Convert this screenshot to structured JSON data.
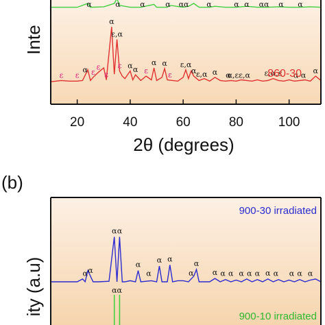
{
  "panel_b_label": "(b)",
  "chart_data": [
    {
      "type": "line",
      "panel": "a",
      "xlabel": "2θ (degrees)",
      "ylabel": "Inte",
      "xlim": [
        10,
        112
      ],
      "x_ticks": [
        20,
        40,
        60,
        80,
        100
      ],
      "series": [
        {
          "name": "860-30",
          "color": "#e03030",
          "x": [
            10,
            14,
            17,
            20,
            22,
            24,
            25,
            26,
            28,
            30,
            31,
            33,
            34,
            35,
            36,
            37,
            38,
            40,
            41,
            42,
            44,
            46,
            48,
            49,
            50,
            52,
            53,
            54,
            56,
            58,
            60,
            61,
            62,
            63,
            64,
            66,
            68,
            70,
            72,
            74,
            76,
            78,
            80,
            82,
            84,
            86,
            88,
            90,
            92,
            94,
            96,
            98,
            100,
            102,
            104,
            106,
            108,
            110,
            112
          ],
          "y": [
            0.03,
            0.05,
            0.04,
            0.04,
            0.05,
            0.22,
            0.05,
            0.1,
            0.18,
            0.25,
            0.06,
            0.9,
            0.15,
            0.7,
            0.2,
            0.12,
            0.08,
            0.2,
            0.06,
            0.14,
            0.05,
            0.12,
            0.06,
            0.25,
            0.05,
            0.1,
            0.24,
            0.06,
            0.05,
            0.04,
            0.1,
            0.22,
            0.08,
            0.2,
            0.12,
            0.05,
            0.08,
            0.04,
            0.1,
            0.05,
            0.04,
            0.05,
            0.04,
            0.06,
            0.05,
            0.04,
            0.06,
            0.04,
            0.05,
            0.08,
            0.05,
            0.04,
            0.06,
            0.04,
            0.05,
            0.06,
            0.04,
            0.12,
            0.05
          ]
        },
        {
          "color": "#40d040",
          "x": [
            10,
            20,
            24,
            25,
            30,
            34,
            35,
            36,
            40,
            44,
            49,
            50,
            54,
            55,
            60,
            62,
            64,
            66,
            70,
            72,
            76,
            80,
            84,
            88,
            92,
            96,
            100,
            104,
            108,
            112
          ],
          "y": [
            0.1,
            0.1,
            0.5,
            0.1,
            0.15,
            0.5,
            1.0,
            0.3,
            0.1,
            0.1,
            0.4,
            0.1,
            0.1,
            0.3,
            0.1,
            0.2,
            0.5,
            0.1,
            0.1,
            0.2,
            0.1,
            0.1,
            0.2,
            0.1,
            0.1,
            0.15,
            0.1,
            0.1,
            0.15,
            0.1
          ]
        }
      ],
      "peak_labels": [
        {
          "x": 33,
          "text": "α",
          "kind": "alpha"
        },
        {
          "x": 35,
          "text": "ε,α",
          "kind": "mixed"
        },
        {
          "x": 31,
          "text": "ε",
          "kind": "eps"
        },
        {
          "x": 36,
          "text": "ε",
          "kind": "eps"
        },
        {
          "x": 23,
          "text": "α",
          "kind": "alpha"
        },
        {
          "x": 28,
          "text": "ε",
          "kind": "eps"
        },
        {
          "x": 14,
          "text": "ε",
          "kind": "eps"
        },
        {
          "x": 20,
          "text": "ε",
          "kind": "eps"
        },
        {
          "x": 26,
          "text": "ε",
          "kind": "eps"
        },
        {
          "x": 40,
          "text": "α",
          "kind": "alpha"
        },
        {
          "x": 42,
          "text": "α",
          "kind": "alpha"
        },
        {
          "x": 46,
          "text": "ε",
          "kind": "eps"
        },
        {
          "x": 49,
          "text": "α",
          "kind": "alpha"
        },
        {
          "x": 53,
          "text": "α",
          "kind": "alpha"
        },
        {
          "x": 55,
          "text": "ε",
          "kind": "eps"
        },
        {
          "x": 61,
          "text": "ε,α",
          "kind": "mixed"
        },
        {
          "x": 64,
          "text": "α",
          "kind": "alpha"
        },
        {
          "x": 67,
          "text": "ε,α",
          "kind": "mixed"
        },
        {
          "x": 72,
          "text": "α",
          "kind": "alpha"
        },
        {
          "x": 77,
          "text": "α",
          "kind": "alpha"
        },
        {
          "x": 81,
          "text": "α,εε,α",
          "kind": "mixed"
        },
        {
          "x": 94,
          "text": "ε,α,ε",
          "kind": "mixed"
        },
        {
          "x": 104,
          "text": "α α",
          "kind": "alpha"
        },
        {
          "x": 110,
          "text": "α",
          "kind": "alpha"
        }
      ],
      "green_labels": [
        "α",
        "α",
        "α",
        "α",
        "αα",
        "α",
        "α",
        "α",
        "αα",
        "α",
        "α"
      ]
    },
    {
      "type": "line",
      "panel": "b",
      "ylabel": "ity (a.u)",
      "xlim": [
        10,
        112
      ],
      "series": [
        {
          "name": "900-30 irradiated",
          "color": "#2a2ad0",
          "x": [
            10,
            20,
            22,
            23,
            24,
            26,
            28,
            32,
            34,
            35,
            36,
            37,
            38,
            40,
            42,
            43,
            44,
            48,
            50,
            51,
            52,
            54,
            55,
            56,
            58,
            60,
            62,
            64,
            65,
            66,
            70,
            72,
            74,
            76,
            78,
            80,
            82,
            84,
            86,
            88,
            90,
            92,
            94,
            96,
            98,
            100,
            102,
            104,
            106,
            108,
            110,
            112
          ],
          "y": [
            0.0,
            0.0,
            0.05,
            0.0,
            0.2,
            0.0,
            0.0,
            0.01,
            0.8,
            0.0,
            0.8,
            0.0,
            0.0,
            0.02,
            0.0,
            0.2,
            0.0,
            0.02,
            0.0,
            0.28,
            0.0,
            0.0,
            0.3,
            0.0,
            0.02,
            0.02,
            0.0,
            0.1,
            0.22,
            0.0,
            0.0,
            0.06,
            0.0,
            0.04,
            0.0,
            0.03,
            0.0,
            0.05,
            0.0,
            0.04,
            0.0,
            0.05,
            0.0,
            0.04,
            0.0,
            0.03,
            0.0,
            0.04,
            0.0,
            0.03,
            0.05,
            0.0
          ]
        },
        {
          "name": "900-10 irradiated",
          "color": "#40d040",
          "x": [
            34,
            35,
            36
          ],
          "y": [
            1.0,
            0.0,
            1.0
          ]
        }
      ],
      "peak_labels": [
        {
          "x": 23,
          "text": "α",
          "kind": "alpha"
        },
        {
          "x": 25,
          "text": "α",
          "kind": "alpha"
        },
        {
          "x": 34,
          "text": "α",
          "kind": "alpha"
        },
        {
          "x": 36,
          "text": "α",
          "kind": "alpha"
        },
        {
          "x": 43,
          "text": "α",
          "kind": "alpha"
        },
        {
          "x": 47,
          "text": "α",
          "kind": "alpha"
        },
        {
          "x": 51,
          "text": "α",
          "kind": "alpha"
        },
        {
          "x": 55,
          "text": "α",
          "kind": "alpha"
        },
        {
          "x": 63,
          "text": "α",
          "kind": "alpha"
        },
        {
          "x": 65,
          "text": "α",
          "kind": "alpha"
        },
        {
          "x": 72,
          "text": "α",
          "kind": "alpha"
        },
        {
          "x": 75,
          "text": "α",
          "kind": "alpha"
        },
        {
          "x": 78,
          "text": "α",
          "kind": "alpha"
        },
        {
          "x": 82,
          "text": "α",
          "kind": "alpha"
        },
        {
          "x": 85,
          "text": "α",
          "kind": "alpha"
        },
        {
          "x": 88,
          "text": "α",
          "kind": "alpha"
        },
        {
          "x": 92,
          "text": "α",
          "kind": "alpha"
        },
        {
          "x": 95,
          "text": "α",
          "kind": "alpha"
        },
        {
          "x": 101,
          "text": "α",
          "kind": "alpha"
        },
        {
          "x": 104,
          "text": "α",
          "kind": "alpha"
        },
        {
          "x": 108,
          "text": "α",
          "kind": "alpha"
        }
      ],
      "green_labels": [
        "αα"
      ]
    }
  ],
  "colors": {
    "panel_background_top": "#fdf0e4",
    "panel_background_bottom": "#f8d9b6",
    "axis": "#111111",
    "alpha_label": "#111111",
    "epsilon_label": "#d6157a"
  }
}
